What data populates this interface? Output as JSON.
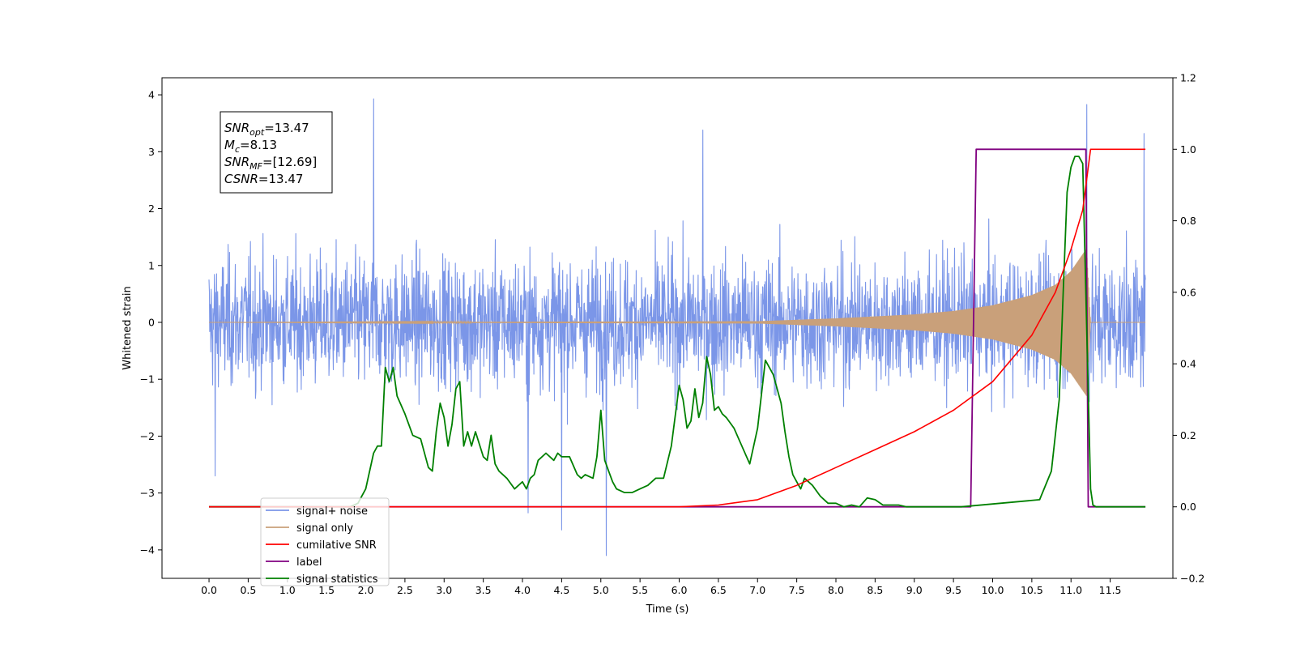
{
  "chart_data": {
    "type": "line",
    "title": "",
    "xlabel": "Time (s)",
    "ylabel": "Whitened strain",
    "y2label": "",
    "xlim": [
      -0.6,
      12.3
    ],
    "ylim": [
      -4.5,
      4.3
    ],
    "y2lim": [
      -0.2,
      1.2
    ],
    "xticks": [
      "0.0",
      "0.5",
      "1.0",
      "1.5",
      "2.0",
      "2.5",
      "3.0",
      "3.5",
      "4.0",
      "4.5",
      "5.0",
      "5.5",
      "6.0",
      "6.5",
      "7.0",
      "7.5",
      "8.0",
      "8.5",
      "9.0",
      "9.5",
      "10.0",
      "10.5",
      "11.0",
      "11.5"
    ],
    "yticks": [
      4,
      3,
      2,
      1,
      0,
      -1,
      -2,
      -3,
      -4
    ],
    "y2ticks": [
      "1.2",
      "1.0",
      "0.8",
      "0.6",
      "0.4",
      "0.2",
      "0.0",
      "−0.2"
    ],
    "grid": false,
    "legend_position": "lower-left",
    "annotation_lines": [
      {
        "var": "SNR",
        "sub": "opt",
        "value": "=13.47"
      },
      {
        "var": "M",
        "sub": "c",
        "value": "=8.13"
      },
      {
        "var": "SNR",
        "sub": "MF",
        "value": "=[12.69]"
      },
      {
        "var": "CSNR",
        "sub": "",
        "value": "=13.47"
      }
    ],
    "series": [
      {
        "name": "signal+ noise",
        "axis": "left",
        "color": "#7b96e8",
        "description": "noise band approx ±1.3 with peaks",
        "peaks": [
          [
            2.1,
            3.93
          ],
          [
            6.3,
            3.38
          ],
          [
            11.2,
            3.83
          ],
          [
            11.93,
            3.32
          ],
          [
            5.07,
            -4.1
          ],
          [
            4.5,
            -3.65
          ],
          [
            4.07,
            -3.35
          ],
          [
            0.08,
            -2.7
          ]
        ]
      },
      {
        "name": "signal only",
        "axis": "left",
        "color": "#c9a07a",
        "description": "chirp: amplitude grows toward 11.2 s, then 0",
        "envelope_x": [
          0.0,
          7.0,
          8.0,
          9.0,
          9.5,
          10.0,
          10.5,
          10.8,
          11.0,
          11.2,
          11.25,
          11.95
        ],
        "envelope_y": [
          0.0,
          0.02,
          0.07,
          0.14,
          0.2,
          0.3,
          0.48,
          0.66,
          0.9,
          1.3,
          0.0,
          0.0
        ]
      },
      {
        "name": "cumilative SNR",
        "axis": "right",
        "color": "#ff0000",
        "x": [
          0,
          6.0,
          6.5,
          7.0,
          7.5,
          8.0,
          8.5,
          9.0,
          9.5,
          10.0,
          10.5,
          10.8,
          11.0,
          11.15,
          11.25,
          11.35,
          11.95
        ],
        "y": [
          0,
          0.0,
          0.005,
          0.02,
          0.06,
          0.11,
          0.16,
          0.21,
          0.27,
          0.35,
          0.48,
          0.6,
          0.72,
          0.83,
          1.0,
          1.0,
          1.0
        ]
      },
      {
        "name": "label",
        "axis": "right",
        "color": "#800080",
        "x": [
          0,
          9.72,
          9.79,
          11.19,
          11.22,
          11.25,
          11.95
        ],
        "y": [
          0,
          0,
          1.0,
          1.0,
          0.0,
          0.0,
          0.0
        ]
      },
      {
        "name": "signal statistics",
        "axis": "right",
        "color": "#008000",
        "x": [
          0,
          1.8,
          1.9,
          2.0,
          2.1,
          2.15,
          2.2,
          2.25,
          2.3,
          2.35,
          2.4,
          2.5,
          2.6,
          2.7,
          2.8,
          2.85,
          2.9,
          2.95,
          3.0,
          3.05,
          3.1,
          3.15,
          3.2,
          3.25,
          3.3,
          3.35,
          3.4,
          3.5,
          3.55,
          3.6,
          3.65,
          3.7,
          3.8,
          3.9,
          4.0,
          4.05,
          4.1,
          4.15,
          4.2,
          4.3,
          4.4,
          4.45,
          4.5,
          4.6,
          4.7,
          4.75,
          4.8,
          4.9,
          4.95,
          5.0,
          5.05,
          5.1,
          5.15,
          5.2,
          5.3,
          5.4,
          5.5,
          5.6,
          5.7,
          5.8,
          5.9,
          6.0,
          6.05,
          6.1,
          6.15,
          6.2,
          6.25,
          6.3,
          6.35,
          6.4,
          6.45,
          6.5,
          6.55,
          6.6,
          6.7,
          6.8,
          6.9,
          7.0,
          7.1,
          7.2,
          7.3,
          7.35,
          7.4,
          7.45,
          7.5,
          7.55,
          7.6,
          7.7,
          7.8,
          7.85,
          7.9,
          8.0,
          8.1,
          8.2,
          8.3,
          8.4,
          8.5,
          8.6,
          8.7,
          8.8,
          8.9,
          9.0,
          9.2,
          9.4,
          9.6,
          10.6,
          10.75,
          10.85,
          10.9,
          10.95,
          11.0,
          11.05,
          11.1,
          11.15,
          11.2,
          11.25,
          11.28,
          11.32,
          11.38,
          11.95
        ],
        "y": [
          0,
          0,
          0.01,
          0.05,
          0.15,
          0.17,
          0.17,
          0.39,
          0.35,
          0.39,
          0.31,
          0.26,
          0.2,
          0.19,
          0.11,
          0.1,
          0.21,
          0.29,
          0.25,
          0.17,
          0.23,
          0.33,
          0.35,
          0.17,
          0.21,
          0.17,
          0.21,
          0.14,
          0.13,
          0.2,
          0.12,
          0.1,
          0.08,
          0.05,
          0.07,
          0.05,
          0.08,
          0.09,
          0.13,
          0.15,
          0.13,
          0.15,
          0.14,
          0.14,
          0.09,
          0.08,
          0.09,
          0.08,
          0.14,
          0.27,
          0.13,
          0.1,
          0.07,
          0.05,
          0.04,
          0.04,
          0.05,
          0.06,
          0.08,
          0.08,
          0.17,
          0.34,
          0.3,
          0.22,
          0.24,
          0.33,
          0.25,
          0.29,
          0.42,
          0.37,
          0.27,
          0.28,
          0.26,
          0.25,
          0.22,
          0.17,
          0.12,
          0.22,
          0.41,
          0.37,
          0.29,
          0.21,
          0.14,
          0.09,
          0.07,
          0.05,
          0.08,
          0.06,
          0.03,
          0.02,
          0.01,
          0.01,
          0.0,
          0.005,
          0.0,
          0.025,
          0.02,
          0.005,
          0.005,
          0.005,
          0.0,
          0.0,
          0.0,
          0.0,
          0.0,
          0.02,
          0.1,
          0.3,
          0.6,
          0.88,
          0.95,
          0.98,
          0.98,
          0.96,
          0.5,
          0.05,
          0.005,
          0.0,
          0.0,
          0.0
        ]
      }
    ]
  }
}
